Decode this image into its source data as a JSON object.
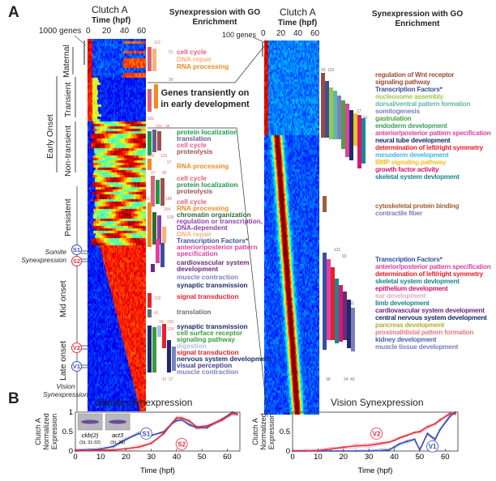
{
  "panel_a": {
    "label": "A",
    "left_heatmap": {
      "title": "Clutch A",
      "xlabel": "Time  (hpf)",
      "ticks": [
        "0",
        "20",
        "40",
        "60"
      ],
      "scale": "1000 genes"
    },
    "right_heatmap": {
      "title": "Clutch A",
      "xlabel": "Time (hpf)",
      "ticks": [
        "0",
        "20",
        "40",
        "60"
      ],
      "scale": "100 genes"
    },
    "header_left": "Synexpression with GO Enrichment",
    "header_right": "Synexpression with GO Enrichment",
    "callout": "Genes transiently on in early development",
    "groups": {
      "maternal": "Maternal",
      "early_onset": "Early Onset",
      "transient": "Transient",
      "non_transient": "Non-transient",
      "persistent": "Persistent",
      "mid_onset": "Mid onset",
      "late_onset": "Late onset",
      "somite_syn": "Somite Synexpression",
      "vision_syn": "Vision Synexpression",
      "markers": [
        "S1",
        "S2",
        "V2",
        "V1"
      ]
    },
    "go_left": [
      {
        "t": "cell cycle",
        "c": "#e0607a"
      },
      {
        "t": "DNA repair",
        "c": "#f7b27a"
      },
      {
        "t": "RNA processing",
        "c": "#f08a24"
      },
      {
        "t": "protein localization",
        "c": "#1a9a4a"
      },
      {
        "t": "translation",
        "c": "#6b5a8a"
      },
      {
        "t": "cell cycle",
        "c": "#e0607a"
      },
      {
        "t": "proteolysis",
        "c": "#a05050"
      },
      {
        "t": "RNA processing",
        "c": "#f08a24"
      },
      {
        "t": "cell cycle",
        "c": "#e0607a"
      },
      {
        "t": "protein localization",
        "c": "#1a9a4a"
      },
      {
        "t": "proteolysis",
        "c": "#a05050"
      },
      {
        "t": "cell cycle",
        "c": "#e0607a"
      },
      {
        "t": "RNA processing",
        "c": "#f08a24"
      },
      {
        "t": "chromatin organization",
        "c": "#2e6b2e"
      },
      {
        "t": "regulation or transcription,",
        "c": "#8b3fa8"
      },
      {
        "t": "DNA-dependent",
        "c": "#8b3fa8"
      },
      {
        "t": "DNA repair",
        "c": "#f7b27a"
      },
      {
        "t": "Transcription Factors*",
        "c": "#3a4fa0"
      },
      {
        "t": "anterior/posterior pattern",
        "c": "#e040a0"
      },
      {
        "t": "specification",
        "c": "#e040a0"
      },
      {
        "t": "cardiovascular system",
        "c": "#6a2a7a"
      },
      {
        "t": "development",
        "c": "#6a2a7a"
      },
      {
        "t": "muscle contraction",
        "c": "#7a80c0"
      },
      {
        "t": "synaptic transmission",
        "c": "#1e2a6a"
      },
      {
        "t": "signal transduction",
        "c": "#e8202a"
      },
      {
        "t": "translation",
        "c": "#6a6a7a"
      },
      {
        "t": "synaptic transmission",
        "c": "#1e2a6a"
      },
      {
        "t": "cell surface receptor",
        "c": "#3a9a3a"
      },
      {
        "t": "signaling pathway",
        "c": "#3a9a3a"
      },
      {
        "t": "digestion",
        "c": "#a8c0e8"
      },
      {
        "t": "signal transduction",
        "c": "#e8202a"
      },
      {
        "t": "nervous system development",
        "c": "#1e2a6a"
      },
      {
        "t": "visual perception",
        "c": "#3a3a8a"
      },
      {
        "t": "muscle contraction",
        "c": "#7a80c0"
      }
    ],
    "go_right": [
      {
        "t": "regulation of Wnt receptor",
        "c": "#a04a3a"
      },
      {
        "t": "signaling pathway",
        "c": "#a04a3a"
      },
      {
        "t": "Transcription Factors*",
        "c": "#3a4fa0"
      },
      {
        "t": "nucleosome assembly",
        "c": "#9ac850"
      },
      {
        "t": "dorsal/ventral pattern formation",
        "c": "#60b8a8"
      },
      {
        "t": "somitogenesis",
        "c": "#7a80c0"
      },
      {
        "t": "gastrulation",
        "c": "#50a040"
      },
      {
        "t": "endoderm development",
        "c": "#40a060"
      },
      {
        "t": "anterior/posterior pattern specification",
        "c": "#e040a0"
      },
      {
        "t": "neural tube development",
        "c": "#1e2a6a"
      },
      {
        "t": "determination of left/right symmetry",
        "c": "#e8202a"
      },
      {
        "t": "mesoderm development",
        "c": "#40b8e8"
      },
      {
        "t": "BMP signaling pathway",
        "c": "#f0c020"
      },
      {
        "t": "growth factor activity",
        "c": "#d81870"
      },
      {
        "t": "skeletal system devlopment",
        "c": "#1a8890"
      },
      {
        "t": "cytoskeletal protein binding",
        "c": "#a0603a"
      },
      {
        "t": "contractile fiber",
        "c": "#7a80c0"
      },
      {
        "t": "Transcription Factors*",
        "c": "#3a4fa0"
      },
      {
        "t": "anterior/posterior pattern specification",
        "c": "#e040a0"
      },
      {
        "t": "determination of left/right symmetry",
        "c": "#e8202a"
      },
      {
        "t": "skeletal system devlopment",
        "c": "#1a8890"
      },
      {
        "t": "epithelium development",
        "c": "#d81870"
      },
      {
        "t": "ear development",
        "c": "#e8a8c8"
      },
      {
        "t": "limb development",
        "c": "#1a8890"
      },
      {
        "t": "cardiovascular system development",
        "c": "#6a2a7a"
      },
      {
        "t": "central nervous system development",
        "c": "#1e2a6a"
      },
      {
        "t": "pancreas development",
        "c": "#b0b030"
      },
      {
        "t": "proximal/distal pattern formation",
        "c": "#e87880"
      },
      {
        "t": "kidney development",
        "c": "#4a68b0"
      },
      {
        "t": "muscle tissue development",
        "c": "#7a80c0"
      }
    ],
    "bar_counts_left": [
      "115",
      "52",
      "98",
      "61",
      "182",
      "335",
      "98",
      "178",
      "125",
      "97",
      "97",
      "65",
      "186",
      "115",
      "154",
      "528",
      "229",
      "41",
      "33",
      "292",
      "124",
      "41",
      "37"
    ],
    "bar_counts_right": [
      "33",
      "132",
      "41",
      "17",
      "121",
      "93",
      "11",
      "39",
      "24",
      "40"
    ]
  },
  "chart_data": [
    {
      "type": "line",
      "title": "Somite Synexpression",
      "xlabel": "Time (hpf)",
      "ylabel": "Clutch A Normalized Expression",
      "xlim": [
        0,
        65
      ],
      "ylim": [
        0,
        1
      ],
      "xticks": [
        "0",
        "10",
        "20",
        "30",
        "40",
        "50",
        "60"
      ],
      "yticks": [
        "0",
        "0.5",
        "1"
      ],
      "x": [
        0,
        5,
        10,
        15,
        20,
        25,
        30,
        35,
        38,
        40,
        42,
        45,
        48,
        52,
        55,
        58,
        62,
        64
      ],
      "series": [
        {
          "name": "S1",
          "color": "#3a4fb0",
          "values": [
            0.02,
            0.03,
            0.05,
            0.12,
            0.3,
            0.45,
            0.4,
            0.5,
            0.7,
            0.78,
            0.8,
            0.68,
            0.6,
            0.6,
            0.72,
            0.82,
            1.0,
            0.95
          ]
        },
        {
          "name": "S2",
          "color": "#e03040",
          "values": [
            0,
            0.01,
            0.02,
            0.03,
            0.06,
            0.1,
            0.2,
            0.45,
            0.7,
            0.85,
            0.85,
            0.78,
            0.62,
            0.65,
            0.72,
            0.8,
            0.97,
            0.95
          ]
        }
      ],
      "insets": [
        {
          "gene": "ckb(2)",
          "stage": "(St. 31-32)"
        },
        {
          "gene": "act3",
          "stage": "(St. 28)"
        }
      ]
    },
    {
      "type": "line",
      "title": "Vision Synexpression",
      "xlabel": "Time (hpf)",
      "ylabel": "Clutch A Normalized Expression",
      "xlim": [
        0,
        65
      ],
      "ylim": [
        0,
        1
      ],
      "xticks": [
        "0",
        "10",
        "20",
        "30",
        "40",
        "50",
        "60"
      ],
      "yticks": [
        "0",
        "0.5",
        "1"
      ],
      "x": [
        0,
        5,
        10,
        15,
        20,
        25,
        30,
        35,
        38,
        40,
        42,
        45,
        48,
        50,
        53,
        56,
        58,
        62,
        64
      ],
      "series": [
        {
          "name": "V1",
          "color": "#3a4fb0",
          "values": [
            0,
            0,
            0,
            0,
            0,
            0,
            0,
            0.01,
            0.03,
            0.1,
            0.18,
            0.25,
            0.3,
            0.03,
            0.45,
            0.3,
            0.55,
            0.9,
            1.0
          ]
        },
        {
          "name": "V2",
          "color": "#e03040",
          "values": [
            0,
            0,
            0.01,
            0.05,
            0.1,
            0.13,
            0.15,
            0.2,
            0.23,
            0.27,
            0.33,
            0.4,
            0.48,
            0.5,
            0.62,
            0.7,
            0.8,
            0.97,
            0.95
          ]
        }
      ]
    }
  ],
  "panel_b": {
    "label": "B"
  }
}
